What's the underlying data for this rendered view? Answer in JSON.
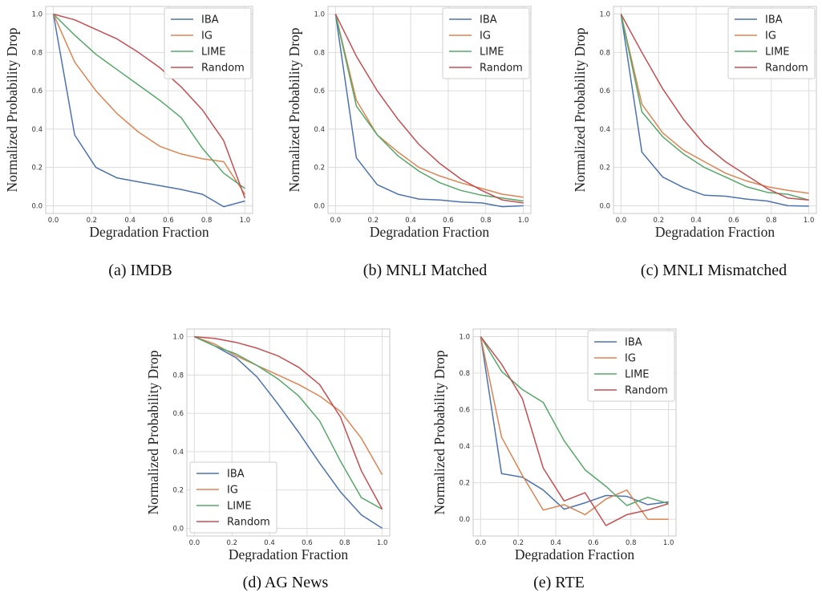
{
  "style": {
    "series_colors": {
      "IBA": "#4c72b0",
      "IG": "#dd8452",
      "LIME": "#55a868",
      "Random": "#c44e52"
    },
    "grid_color": "#dcdcdc",
    "frame_color": "#c8c8c8"
  },
  "chart_data": [
    {
      "type": "line",
      "caption": "(a) IMDB",
      "xlabel": "Degradation Fraction",
      "ylabel": "Normalized Probability Drop",
      "xlim": [
        0,
        1
      ],
      "ylim": [
        0,
        1
      ],
      "xticks": [
        "0.0",
        "0.2",
        "0.4",
        "0.6",
        "0.8",
        "1.0"
      ],
      "yticks": [
        "0.0",
        "0.2",
        "0.4",
        "0.6",
        "0.8",
        "1.0"
      ],
      "grid": true,
      "legend": "top-right",
      "x": [
        0,
        0.111,
        0.222,
        0.333,
        0.444,
        0.556,
        0.667,
        0.778,
        0.889,
        1.0
      ],
      "series": [
        {
          "name": "IBA",
          "values": [
            1.0,
            0.37,
            0.2,
            0.145,
            0.125,
            0.105,
            0.085,
            0.06,
            -0.005,
            0.025
          ]
        },
        {
          "name": "IG",
          "values": [
            1.0,
            0.75,
            0.6,
            0.48,
            0.385,
            0.31,
            0.27,
            0.245,
            0.23,
            0.06
          ]
        },
        {
          "name": "LIME",
          "values": [
            1.0,
            0.89,
            0.79,
            0.71,
            0.63,
            0.55,
            0.46,
            0.3,
            0.17,
            0.09
          ]
        },
        {
          "name": "Random",
          "values": [
            1.0,
            0.97,
            0.92,
            0.87,
            0.8,
            0.72,
            0.62,
            0.5,
            0.34,
            0.04
          ]
        }
      ]
    },
    {
      "type": "line",
      "caption": "(b) MNLI Matched",
      "xlabel": "Degradation Fraction",
      "ylabel": "Normalized Probability Drop",
      "xlim": [
        0,
        1
      ],
      "ylim": [
        0,
        1
      ],
      "xticks": [
        "0.0",
        "0.2",
        "0.4",
        "0.6",
        "0.8",
        "1.0"
      ],
      "yticks": [
        "0.0",
        "0.2",
        "0.4",
        "0.6",
        "0.8",
        "1.0"
      ],
      "grid": true,
      "legend": "top-right",
      "x": [
        0,
        0.111,
        0.222,
        0.333,
        0.444,
        0.556,
        0.667,
        0.778,
        0.889,
        1.0
      ],
      "series": [
        {
          "name": "IBA",
          "values": [
            1.0,
            0.25,
            0.11,
            0.06,
            0.035,
            0.03,
            0.02,
            0.015,
            -0.005,
            0.0
          ]
        },
        {
          "name": "IG",
          "values": [
            1.0,
            0.55,
            0.37,
            0.28,
            0.2,
            0.155,
            0.12,
            0.09,
            0.06,
            0.045
          ]
        },
        {
          "name": "LIME",
          "values": [
            1.0,
            0.52,
            0.37,
            0.26,
            0.18,
            0.12,
            0.08,
            0.055,
            0.04,
            0.025
          ]
        },
        {
          "name": "Random",
          "values": [
            1.0,
            0.78,
            0.6,
            0.45,
            0.32,
            0.22,
            0.14,
            0.08,
            0.03,
            0.015
          ]
        }
      ]
    },
    {
      "type": "line",
      "caption": "(c) MNLI Mismatched",
      "xlabel": "Degradation Fraction",
      "ylabel": "Normalized Probability Drop",
      "xlim": [
        0,
        1
      ],
      "ylim": [
        0,
        1
      ],
      "xticks": [
        "0.0",
        "0.2",
        "0.4",
        "0.6",
        "0.8",
        "1.0"
      ],
      "yticks": [
        "0.0",
        "0.2",
        "0.4",
        "0.6",
        "0.8",
        "1.0"
      ],
      "grid": true,
      "legend": "top-right",
      "x": [
        0,
        0.111,
        0.222,
        0.333,
        0.444,
        0.556,
        0.667,
        0.778,
        0.889,
        1.0
      ],
      "series": [
        {
          "name": "IBA",
          "values": [
            1.0,
            0.28,
            0.15,
            0.095,
            0.055,
            0.05,
            0.035,
            0.025,
            0.0,
            -0.002
          ]
        },
        {
          "name": "IG",
          "values": [
            1.0,
            0.53,
            0.38,
            0.29,
            0.23,
            0.17,
            0.13,
            0.1,
            0.08,
            0.065
          ]
        },
        {
          "name": "LIME",
          "values": [
            1.0,
            0.49,
            0.36,
            0.27,
            0.2,
            0.15,
            0.1,
            0.07,
            0.06,
            0.03
          ]
        },
        {
          "name": "Random",
          "values": [
            1.0,
            0.8,
            0.61,
            0.45,
            0.32,
            0.23,
            0.16,
            0.09,
            0.04,
            0.03
          ]
        }
      ]
    },
    {
      "type": "line",
      "caption": "(d) AG News",
      "xlabel": "Degradation Fraction",
      "ylabel": "Normalized Probability Drop",
      "xlim": [
        0,
        1
      ],
      "ylim": [
        0,
        1
      ],
      "xticks": [
        "0.0",
        "0.2",
        "0.4",
        "0.6",
        "0.8",
        "1.0"
      ],
      "yticks": [
        "0.0",
        "0.2",
        "0.4",
        "0.6",
        "0.8",
        "1.0"
      ],
      "grid": true,
      "legend": "bottom-left",
      "x": [
        0,
        0.111,
        0.222,
        0.333,
        0.444,
        0.556,
        0.667,
        0.778,
        0.889,
        1.0
      ],
      "series": [
        {
          "name": "IBA",
          "values": [
            1.0,
            0.95,
            0.89,
            0.79,
            0.65,
            0.5,
            0.34,
            0.19,
            0.07,
            0.0
          ]
        },
        {
          "name": "IG",
          "values": [
            1.0,
            0.96,
            0.9,
            0.85,
            0.8,
            0.75,
            0.69,
            0.61,
            0.47,
            0.28
          ]
        },
        {
          "name": "LIME",
          "values": [
            1.0,
            0.95,
            0.91,
            0.85,
            0.78,
            0.69,
            0.56,
            0.35,
            0.16,
            0.1
          ]
        },
        {
          "name": "Random",
          "values": [
            1.0,
            0.99,
            0.97,
            0.94,
            0.9,
            0.84,
            0.75,
            0.58,
            0.3,
            0.1
          ]
        }
      ]
    },
    {
      "type": "line",
      "caption": "(e) RTE",
      "xlabel": "Degradation Fraction",
      "ylabel": "Normalized Probability Drop",
      "xlim": [
        0,
        1
      ],
      "ylim": [
        -0.05,
        1
      ],
      "xticks": [
        "0.0",
        "0.2",
        "0.4",
        "0.6",
        "0.8",
        "1.0"
      ],
      "yticks": [
        "0.0",
        "0.2",
        "0.4",
        "0.6",
        "0.8",
        "1.0"
      ],
      "grid": true,
      "legend": "top-right",
      "x": [
        0,
        0.111,
        0.222,
        0.333,
        0.444,
        0.556,
        0.667,
        0.778,
        0.889,
        1.0
      ],
      "series": [
        {
          "name": "IBA",
          "values": [
            1.0,
            0.25,
            0.23,
            0.16,
            0.055,
            0.09,
            0.13,
            0.125,
            0.08,
            0.095
          ]
        },
        {
          "name": "IG",
          "values": [
            1.0,
            0.45,
            0.24,
            0.05,
            0.08,
            0.025,
            0.11,
            0.16,
            0.0,
            0.0
          ]
        },
        {
          "name": "LIME",
          "values": [
            1.0,
            0.81,
            0.71,
            0.64,
            0.43,
            0.27,
            0.18,
            0.075,
            0.12,
            0.085
          ]
        },
        {
          "name": "Random",
          "values": [
            1.0,
            0.85,
            0.66,
            0.28,
            0.1,
            0.145,
            -0.035,
            0.025,
            0.05,
            0.085
          ]
        }
      ]
    }
  ]
}
